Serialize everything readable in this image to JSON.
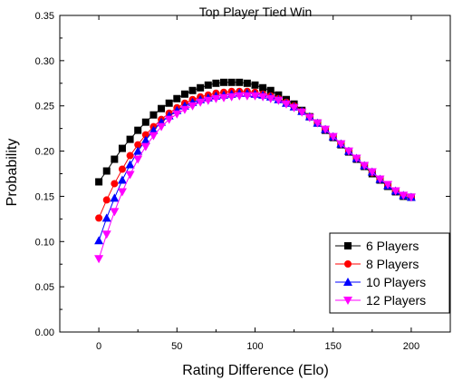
{
  "chart_data": {
    "type": "line",
    "title": "Top Player Tied Win",
    "xlabel": "Rating Difference (Elo)",
    "ylabel": "Probability",
    "xlim": [
      -25,
      225
    ],
    "ylim": [
      0,
      0.35
    ],
    "xticks": [
      0,
      50,
      100,
      150,
      200
    ],
    "xtick_labels": [
      "0",
      "50",
      "100",
      "150",
      "200"
    ],
    "yticks": [
      0,
      0.05,
      0.1,
      0.15,
      0.2,
      0.25,
      0.3,
      0.35
    ],
    "ytick_labels": [
      "0.00",
      "0.05",
      "0.10",
      "0.15",
      "0.20",
      "0.25",
      "0.30",
      "0.35"
    ],
    "grid": false,
    "legend_position": "bottom-right",
    "x": [
      0,
      5,
      10,
      15,
      20,
      25,
      30,
      35,
      40,
      45,
      50,
      55,
      60,
      65,
      70,
      75,
      80,
      85,
      90,
      95,
      100,
      105,
      110,
      115,
      120,
      125,
      130,
      135,
      140,
      145,
      150,
      155,
      160,
      165,
      170,
      175,
      180,
      185,
      190,
      195,
      200
    ],
    "series": [
      {
        "name": "6 Players",
        "color": "#000000",
        "marker": "square",
        "values": [
          0.166,
          0.178,
          0.191,
          0.203,
          0.213,
          0.223,
          0.232,
          0.24,
          0.247,
          0.253,
          0.258,
          0.263,
          0.267,
          0.27,
          0.273,
          0.275,
          0.276,
          0.276,
          0.276,
          0.275,
          0.273,
          0.27,
          0.267,
          0.262,
          0.257,
          0.252,
          0.245,
          0.238,
          0.231,
          0.223,
          0.215,
          0.207,
          0.199,
          0.191,
          0.183,
          0.175,
          0.168,
          0.161,
          0.155,
          0.15,
          0.149
        ]
      },
      {
        "name": "8 Players",
        "color": "#ff0000",
        "marker": "circle",
        "values": [
          0.126,
          0.146,
          0.164,
          0.18,
          0.195,
          0.207,
          0.218,
          0.227,
          0.235,
          0.242,
          0.248,
          0.253,
          0.257,
          0.26,
          0.262,
          0.264,
          0.265,
          0.266,
          0.266,
          0.266,
          0.265,
          0.263,
          0.261,
          0.258,
          0.254,
          0.25,
          0.244,
          0.238,
          0.231,
          0.224,
          0.216,
          0.208,
          0.2,
          0.192,
          0.184,
          0.176,
          0.169,
          0.162,
          0.156,
          0.151,
          0.149
        ]
      },
      {
        "name": "10 Players",
        "color": "#0000ff",
        "marker": "triangle-up",
        "values": [
          0.101,
          0.126,
          0.148,
          0.168,
          0.185,
          0.2,
          0.212,
          0.223,
          0.232,
          0.239,
          0.245,
          0.25,
          0.254,
          0.257,
          0.259,
          0.261,
          0.262,
          0.263,
          0.264,
          0.264,
          0.263,
          0.262,
          0.26,
          0.257,
          0.253,
          0.249,
          0.244,
          0.238,
          0.231,
          0.224,
          0.216,
          0.208,
          0.2,
          0.192,
          0.184,
          0.177,
          0.169,
          0.162,
          0.156,
          0.151,
          0.149
        ]
      },
      {
        "name": "12 Players",
        "color": "#ff00ff",
        "marker": "triangle-down",
        "values": [
          0.081,
          0.108,
          0.133,
          0.155,
          0.174,
          0.191,
          0.205,
          0.217,
          0.227,
          0.235,
          0.241,
          0.246,
          0.25,
          0.254,
          0.256,
          0.258,
          0.259,
          0.26,
          0.261,
          0.261,
          0.261,
          0.26,
          0.258,
          0.256,
          0.252,
          0.248,
          0.243,
          0.237,
          0.231,
          0.224,
          0.216,
          0.208,
          0.2,
          0.192,
          0.184,
          0.177,
          0.169,
          0.163,
          0.156,
          0.151,
          0.149
        ]
      }
    ]
  }
}
